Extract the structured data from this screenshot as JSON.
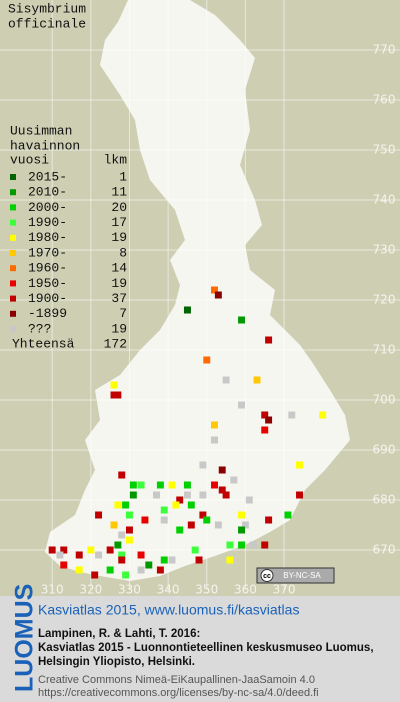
{
  "map": {
    "title": [
      "Sisymbrium",
      "officinale"
    ],
    "legend_title": [
      "Uusimman",
      "havainnon"
    ],
    "legend_header": [
      "vuosi",
      "lkm"
    ],
    "legend": [
      {
        "label": "2015-",
        "count": 1,
        "color": "#006400"
      },
      {
        "label": "2010-",
        "count": 11,
        "color": "#009a00"
      },
      {
        "label": "2000-",
        "count": 20,
        "color": "#00d000"
      },
      {
        "label": "1990-",
        "count": 17,
        "color": "#3cff3c"
      },
      {
        "label": "1980-",
        "count": 19,
        "color": "#ffff00"
      },
      {
        "label": "1970-",
        "count": 8,
        "color": "#ffc800"
      },
      {
        "label": "1960-",
        "count": 14,
        "color": "#ff6a00"
      },
      {
        "label": "1950-",
        "count": 19,
        "color": "#e80000"
      },
      {
        "label": "1900-",
        "count": 37,
        "color": "#c00000"
      },
      {
        "label": "-1899",
        "count": 7,
        "color": "#8a0000"
      },
      {
        "label": "???",
        "count": 19,
        "color": "#c8c8c8"
      }
    ],
    "total": {
      "label": "Yhteensä",
      "count": 172
    },
    "xlim": [
      296.5,
      400
    ],
    "ylim": [
      662,
      780
    ],
    "xticks": [
      310,
      320,
      330,
      340,
      350,
      360,
      370
    ],
    "yticks": [
      670,
      680,
      690,
      700,
      710,
      720,
      730,
      740,
      750,
      760,
      770
    ],
    "squares": [
      [
        352,
        722,
        6
      ],
      [
        353,
        721,
        9
      ],
      [
        345,
        718,
        0
      ],
      [
        359,
        716,
        1
      ],
      [
        366,
        712,
        8
      ],
      [
        350,
        708,
        6
      ],
      [
        363,
        704,
        5
      ],
      [
        355,
        704,
        10
      ],
      [
        326,
        703,
        4
      ],
      [
        326,
        701,
        8
      ],
      [
        327,
        701,
        8
      ],
      [
        359,
        699,
        10
      ],
      [
        365,
        697,
        8
      ],
      [
        366,
        696,
        9
      ],
      [
        372,
        697,
        10
      ],
      [
        380,
        697,
        4
      ],
      [
        352,
        695,
        5
      ],
      [
        365,
        694,
        7
      ],
      [
        352,
        692,
        10
      ],
      [
        374,
        687,
        4
      ],
      [
        349,
        687,
        10
      ],
      [
        354,
        686,
        9
      ],
      [
        328,
        685,
        8
      ],
      [
        357,
        684,
        10
      ],
      [
        354,
        682,
        8
      ],
      [
        352,
        683,
        7
      ],
      [
        345,
        683,
        2
      ],
      [
        345,
        681,
        10
      ],
      [
        341,
        683,
        4
      ],
      [
        338,
        683,
        2
      ],
      [
        331,
        683,
        2
      ],
      [
        333,
        683,
        3
      ],
      [
        331,
        681,
        1
      ],
      [
        337,
        681,
        10
      ],
      [
        343,
        680,
        8
      ],
      [
        342,
        679,
        4
      ],
      [
        339,
        678,
        3
      ],
      [
        346,
        679,
        2
      ],
      [
        349,
        681,
        10
      ],
      [
        355,
        681,
        8
      ],
      [
        327,
        679,
        4
      ],
      [
        329,
        679,
        2
      ],
      [
        322,
        677,
        8
      ],
      [
        330,
        677,
        3
      ],
      [
        334,
        676,
        7
      ],
      [
        339,
        676,
        10
      ],
      [
        343,
        674,
        2
      ],
      [
        346,
        675,
        8
      ],
      [
        349,
        677,
        8
      ],
      [
        359,
        677,
        4
      ],
      [
        360,
        675,
        10
      ],
      [
        359,
        674,
        1
      ],
      [
        353,
        675,
        10
      ],
      [
        366,
        676,
        8
      ],
      [
        371,
        677,
        2
      ],
      [
        374,
        681,
        8
      ],
      [
        356,
        671,
        3
      ],
      [
        359,
        671,
        2
      ],
      [
        362,
        671,
        10
      ],
      [
        365,
        671,
        8
      ],
      [
        356,
        668,
        4
      ],
      [
        348,
        668,
        8
      ],
      [
        347,
        670,
        3
      ],
      [
        341,
        668,
        10
      ],
      [
        339,
        668,
        2
      ],
      [
        338,
        666,
        8
      ],
      [
        335,
        667,
        1
      ],
      [
        333,
        669,
        7
      ],
      [
        327,
        671,
        1
      ],
      [
        328,
        669,
        3
      ],
      [
        325,
        670,
        8
      ],
      [
        322,
        669,
        10
      ],
      [
        320,
        670,
        4
      ],
      [
        317,
        669,
        8
      ],
      [
        313,
        670,
        8
      ],
      [
        312,
        669,
        10
      ],
      [
        310,
        670,
        8
      ],
      [
        313,
        667,
        7
      ],
      [
        317,
        666,
        4
      ],
      [
        321,
        665,
        8
      ],
      [
        328,
        668,
        8
      ],
      [
        329,
        665,
        3
      ],
      [
        333,
        666,
        10
      ],
      [
        325,
        666,
        2
      ],
      [
        328,
        673,
        10
      ],
      [
        330,
        672,
        4
      ],
      [
        326,
        675,
        5
      ],
      [
        330,
        674,
        8
      ],
      [
        361,
        680,
        10
      ],
      [
        350,
        676,
        2
      ]
    ],
    "badge": [
      "cc",
      "BY-NC-SA"
    ]
  },
  "footer": {
    "logo": "LUOMUS",
    "heading": "Kasviatlas 2015, www.luomus.fi/kasviatlas",
    "citation": [
      "Lampinen, R. & Lahti, T. 2016:",
      "Kasviatlas 2015 - Luonnontieteellinen keskusmuseo Luomus,",
      "Helsingin Yliopisto, Helsinki."
    ],
    "license": [
      "Creative Commons Nimeä-EiKaupallinen-JaaSamoin 4.0",
      "https://creativecommons.org/licenses/by-nc-sa/4.0/deed.fi"
    ]
  }
}
